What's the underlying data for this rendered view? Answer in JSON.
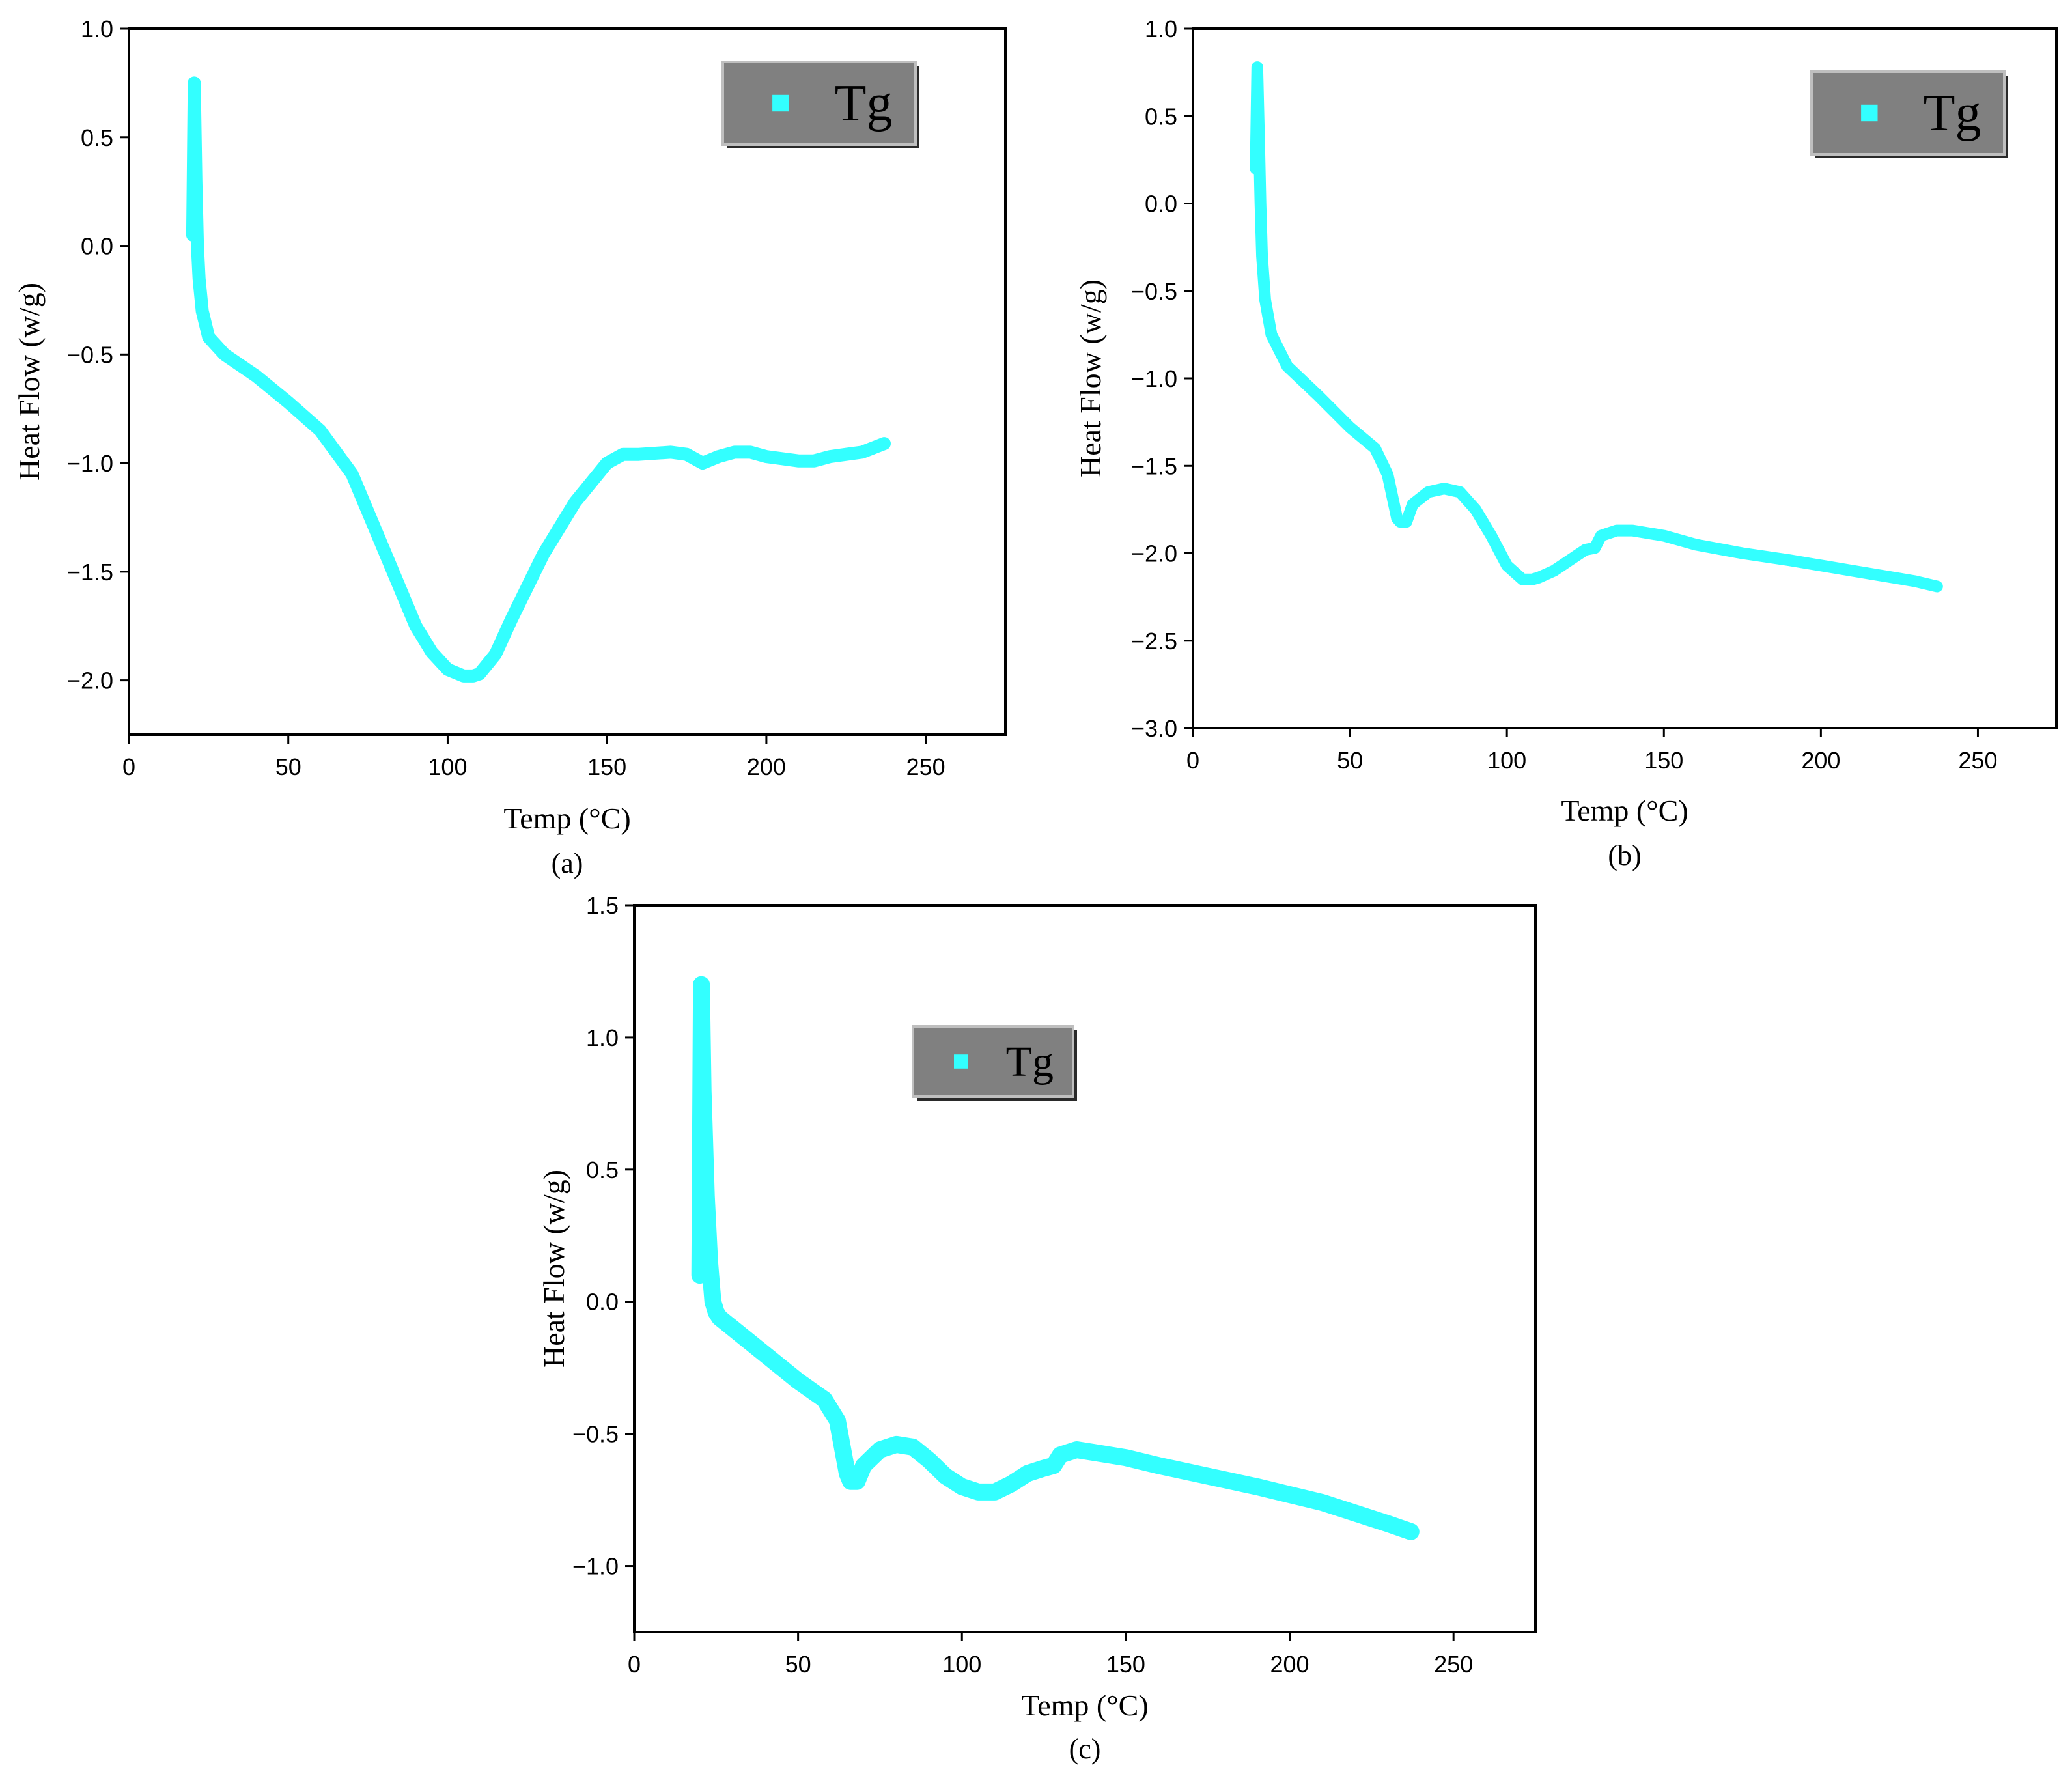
{
  "chart_data": [
    {
      "type": "line",
      "panel_label": "(a)",
      "xlabel": "Temp (°C)",
      "ylabel": "Heat Flow (w/g)",
      "xlim": [
        0,
        275
      ],
      "ylim": [
        -2.25,
        1.0
      ],
      "xticks": [
        0,
        50,
        100,
        150,
        200,
        250
      ],
      "yticks": [
        1.0,
        0.5,
        0.0,
        -0.5,
        -1.0,
        -1.5,
        -2.0
      ],
      "xtick_labels": [
        "0",
        "50",
        "100",
        "150",
        "200",
        "250"
      ],
      "ytick_labels": [
        "1.0",
        "0.5",
        "0.0",
        "−0.5",
        "−1.0",
        "−1.5",
        "−2.0"
      ],
      "legend": {
        "label": "Tg",
        "position": "top-right"
      },
      "grid": false,
      "series": [
        {
          "name": "Tg",
          "color": "#33FFFF",
          "x": [
            20,
            20.5,
            21,
            21.5,
            22,
            23,
            25,
            30,
            40,
            50,
            60,
            70,
            80,
            90,
            95,
            100,
            105,
            108,
            110,
            115,
            120,
            130,
            140,
            150,
            155,
            160,
            170,
            175,
            180,
            185,
            190,
            195,
            200,
            205,
            210,
            215,
            220,
            225,
            230,
            237
          ],
          "y": [
            0.05,
            0.75,
            0.3,
            0.0,
            -0.15,
            -0.3,
            -0.42,
            -0.5,
            -0.6,
            -0.72,
            -0.85,
            -1.05,
            -1.4,
            -1.75,
            -1.87,
            -1.95,
            -1.98,
            -1.98,
            -1.97,
            -1.88,
            -1.72,
            -1.42,
            -1.18,
            -1.0,
            -0.96,
            -0.96,
            -0.95,
            -0.96,
            -1.0,
            -0.97,
            -0.95,
            -0.95,
            -0.97,
            -0.98,
            -0.99,
            -0.99,
            -0.97,
            -0.96,
            -0.95,
            -0.91
          ]
        }
      ]
    },
    {
      "type": "line",
      "panel_label": "(b)",
      "xlabel": "Temp (°C)",
      "ylabel": "Heat Flow (w/g)",
      "xlim": [
        0,
        275
      ],
      "ylim": [
        -3.0,
        1.0
      ],
      "xticks": [
        0,
        50,
        100,
        150,
        200,
        250
      ],
      "yticks": [
        1.0,
        0.5,
        0.0,
        -0.5,
        -1.0,
        -1.5,
        -2.0,
        -2.5,
        -3.0
      ],
      "xtick_labels": [
        "0",
        "50",
        "100",
        "150",
        "200",
        "250"
      ],
      "ytick_labels": [
        "1.0",
        "0.5",
        "0.0",
        "−0.5",
        "−1.0",
        "−1.5",
        "−2.0",
        "−2.5",
        "−3.0"
      ],
      "legend": {
        "label": "Tg",
        "position": "top-right"
      },
      "grid": false,
      "series": [
        {
          "name": "Tg",
          "color": "#33FFFF",
          "x": [
            20,
            20.5,
            21,
            21.5,
            22,
            23,
            25,
            30,
            40,
            50,
            58,
            62,
            65,
            66,
            68,
            70,
            75,
            80,
            85,
            90,
            95,
            100,
            105,
            108,
            110,
            115,
            120,
            125,
            128,
            130,
            135,
            140,
            150,
            160,
            175,
            190,
            200,
            210,
            220,
            230,
            237
          ],
          "y": [
            0.2,
            0.78,
            0.4,
            0.0,
            -0.3,
            -0.55,
            -0.75,
            -0.93,
            -1.1,
            -1.28,
            -1.4,
            -1.55,
            -1.8,
            -1.82,
            -1.82,
            -1.72,
            -1.65,
            -1.63,
            -1.65,
            -1.75,
            -1.9,
            -2.07,
            -2.15,
            -2.15,
            -2.14,
            -2.1,
            -2.04,
            -1.98,
            -1.97,
            -1.9,
            -1.87,
            -1.87,
            -1.9,
            -1.95,
            -2.0,
            -2.04,
            -2.07,
            -2.1,
            -2.13,
            -2.16,
            -2.19
          ]
        }
      ]
    },
    {
      "type": "line",
      "panel_label": "(c)",
      "xlabel": "Temp (°C)",
      "ylabel": "Heat Flow (w/g)",
      "xlim": [
        0,
        275
      ],
      "ylim": [
        -1.25,
        1.5
      ],
      "xticks": [
        0,
        50,
        100,
        150,
        200,
        250
      ],
      "yticks": [
        1.5,
        1.0,
        0.5,
        0.0,
        -0.5,
        -1.0
      ],
      "xtick_labels": [
        "0",
        "50",
        "100",
        "150",
        "200",
        "250"
      ],
      "ytick_labels": [
        "1.5",
        "1.0",
        "0.5",
        "0.0",
        "−0.5",
        "−1.0"
      ],
      "legend": {
        "label": "Tg",
        "position": "top-left"
      },
      "grid": false,
      "series": [
        {
          "name": "Tg",
          "color": "#33FFFF",
          "x": [
            20,
            20.5,
            21,
            22,
            23,
            24,
            25,
            26,
            28,
            30,
            40,
            50,
            58,
            62,
            65,
            66,
            68,
            70,
            75,
            80,
            85,
            90,
            95,
            100,
            105,
            108,
            110,
            115,
            120,
            125,
            128,
            130,
            135,
            140,
            150,
            160,
            175,
            190,
            200,
            210,
            220,
            230,
            237
          ],
          "y": [
            0.1,
            1.2,
            0.8,
            0.4,
            0.15,
            0.0,
            -0.04,
            -0.06,
            -0.08,
            -0.1,
            -0.2,
            -0.3,
            -0.37,
            -0.45,
            -0.65,
            -0.68,
            -0.68,
            -0.62,
            -0.56,
            -0.54,
            -0.55,
            -0.6,
            -0.66,
            -0.7,
            -0.72,
            -0.72,
            -0.72,
            -0.69,
            -0.65,
            -0.63,
            -0.62,
            -0.58,
            -0.56,
            -0.57,
            -0.59,
            -0.62,
            -0.66,
            -0.7,
            -0.73,
            -0.76,
            -0.8,
            -0.84,
            -0.87
          ]
        }
      ]
    }
  ]
}
